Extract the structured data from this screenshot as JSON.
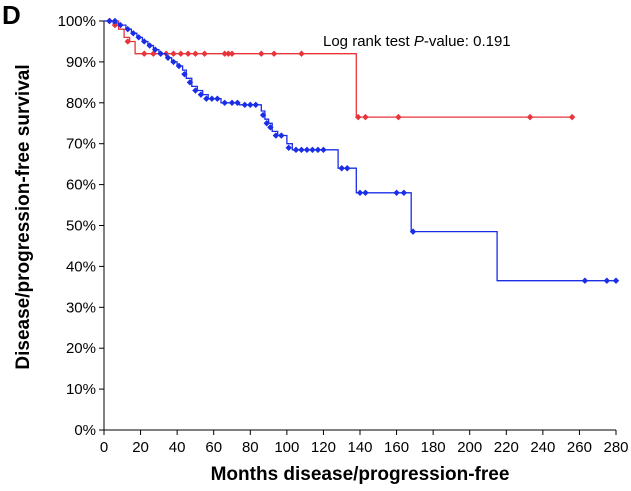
{
  "panel_label": "D",
  "chart_data": {
    "type": "line",
    "subtype": "kaplan-meier step curve",
    "xlabel": "Months disease/progression-free",
    "ylabel": "Disease/progression-free survival",
    "annotation": {
      "prefix": "Log rank test ",
      "italic": "P",
      "suffix": "-value: 0.191"
    },
    "xlim": [
      0,
      280
    ],
    "ylim": [
      0,
      100
    ],
    "x_ticks": [
      0,
      20,
      40,
      60,
      80,
      100,
      120,
      140,
      160,
      180,
      200,
      220,
      240,
      260,
      280
    ],
    "y_ticks": [
      0,
      10,
      20,
      30,
      40,
      50,
      60,
      70,
      80,
      90,
      100
    ],
    "y_tick_labels": [
      "0%",
      "10%",
      "20%",
      "30%",
      "40%",
      "50%",
      "60%",
      "70%",
      "80%",
      "90%",
      "100%"
    ],
    "grid": false,
    "legend": "none",
    "series": [
      {
        "color": "#e8343a",
        "steps": [
          [
            0,
            100
          ],
          [
            4,
            100
          ],
          [
            8,
            98
          ],
          [
            11,
            96
          ],
          [
            14,
            95
          ],
          [
            17,
            92
          ],
          [
            138,
            92
          ],
          [
            138,
            76.5
          ],
          [
            257,
            76.5
          ]
        ],
        "censored": [
          [
            3,
            100
          ],
          [
            6,
            99
          ],
          [
            13,
            95
          ],
          [
            22,
            92
          ],
          [
            27,
            92
          ],
          [
            31,
            92
          ],
          [
            34,
            92
          ],
          [
            38,
            92
          ],
          [
            42,
            92
          ],
          [
            46,
            92
          ],
          [
            50,
            92
          ],
          [
            55,
            92
          ],
          [
            66,
            92
          ],
          [
            68,
            92
          ],
          [
            70,
            92
          ],
          [
            86,
            92
          ],
          [
            93,
            92
          ],
          [
            108,
            92
          ],
          [
            139,
            76.5
          ],
          [
            143,
            76.5
          ],
          [
            161,
            76.5
          ],
          [
            233,
            76.5
          ],
          [
            256,
            76.5
          ]
        ]
      },
      {
        "color": "#1a2ee8",
        "steps": [
          [
            0,
            100
          ],
          [
            5,
            99.5
          ],
          [
            8,
            99
          ],
          [
            12,
            98
          ],
          [
            15,
            97
          ],
          [
            18,
            96
          ],
          [
            21,
            95
          ],
          [
            24,
            94
          ],
          [
            27,
            93
          ],
          [
            30,
            92
          ],
          [
            34,
            91
          ],
          [
            37,
            90
          ],
          [
            40,
            89
          ],
          [
            43,
            88
          ],
          [
            45,
            86
          ],
          [
            48,
            84
          ],
          [
            51,
            83
          ],
          [
            54,
            82
          ],
          [
            57,
            81
          ],
          [
            61,
            81
          ],
          [
            64,
            80
          ],
          [
            72,
            80
          ],
          [
            74,
            79.5
          ],
          [
            84,
            79.5
          ],
          [
            86,
            78
          ],
          [
            88,
            76
          ],
          [
            90,
            75
          ],
          [
            92,
            73
          ],
          [
            95,
            72
          ],
          [
            100,
            70
          ],
          [
            103,
            68.5
          ],
          [
            125,
            68.5
          ],
          [
            128,
            64
          ],
          [
            136,
            64
          ],
          [
            138,
            58
          ],
          [
            166,
            58
          ],
          [
            168,
            48.5
          ],
          [
            215,
            48.5
          ],
          [
            215,
            36.5
          ],
          [
            281,
            36.5
          ]
        ],
        "censored": [
          [
            3,
            100
          ],
          [
            6,
            100
          ],
          [
            9,
            99
          ],
          [
            13,
            98
          ],
          [
            16,
            97
          ],
          [
            19,
            96
          ],
          [
            22,
            95
          ],
          [
            25,
            94
          ],
          [
            28,
            93
          ],
          [
            31,
            92
          ],
          [
            35,
            91
          ],
          [
            38,
            90
          ],
          [
            41,
            89
          ],
          [
            44,
            87
          ],
          [
            47,
            85
          ],
          [
            50,
            83
          ],
          [
            53,
            82
          ],
          [
            56,
            81
          ],
          [
            59,
            81
          ],
          [
            62,
            81
          ],
          [
            66,
            80
          ],
          [
            70,
            80
          ],
          [
            73,
            80
          ],
          [
            77,
            79.5
          ],
          [
            80,
            79.5
          ],
          [
            83,
            79.5
          ],
          [
            87,
            77
          ],
          [
            89,
            75
          ],
          [
            91,
            74
          ],
          [
            94,
            72
          ],
          [
            97,
            72
          ],
          [
            101,
            69
          ],
          [
            105,
            68.5
          ],
          [
            108,
            68.5
          ],
          [
            111,
            68.5
          ],
          [
            114,
            68.5
          ],
          [
            117,
            68.5
          ],
          [
            120,
            68.5
          ],
          [
            130,
            64
          ],
          [
            133,
            64
          ],
          [
            140,
            58
          ],
          [
            143,
            58
          ],
          [
            160,
            58
          ],
          [
            164,
            58
          ],
          [
            169,
            48.5
          ],
          [
            263,
            36.5
          ],
          [
            275,
            36.5
          ],
          [
            280,
            36.5
          ]
        ]
      }
    ]
  }
}
